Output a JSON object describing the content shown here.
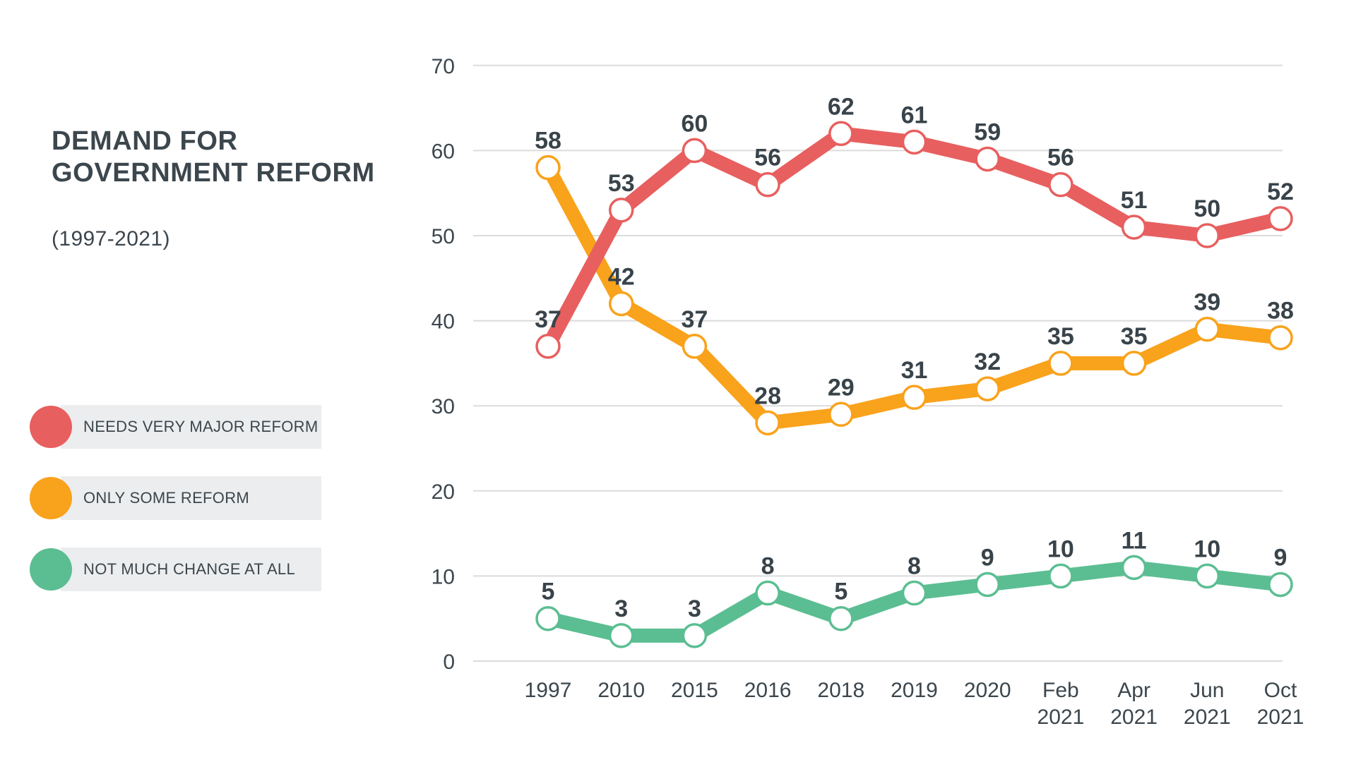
{
  "title": "DEMAND FOR GOVERNMENT REFORM",
  "subtitle": "(1997-2021)",
  "colors": {
    "text": "#3C464D",
    "grid": "#DBDBDB",
    "legend_chip_bg": "#ECEDEE",
    "background": "#FFFFFF",
    "series_red": "#E85F5F",
    "series_orange": "#F9A21B",
    "series_green": "#5BBE92"
  },
  "chart_data": {
    "type": "line",
    "title": "DEMAND FOR GOVERNMENT REFORM",
    "subtitle": "(1997-2021)",
    "categories": [
      "1997",
      "2010",
      "2015",
      "2016",
      "2018",
      "2019",
      "2020",
      "Feb\n2021",
      "Apr\n2021",
      "Jun\n2021",
      "Oct\n2021"
    ],
    "series": [
      {
        "name": "NEEDS VERY MAJOR REFORM",
        "color": "#E85F5F",
        "values": [
          37,
          53,
          60,
          56,
          62,
          61,
          59,
          56,
          51,
          50,
          52
        ]
      },
      {
        "name": "ONLY SOME REFORM",
        "color": "#F9A21B",
        "values": [
          58,
          42,
          37,
          28,
          29,
          31,
          32,
          35,
          35,
          39,
          38
        ]
      },
      {
        "name": "NOT MUCH CHANGE AT ALL",
        "color": "#5BBE92",
        "values": [
          5,
          3,
          3,
          8,
          5,
          8,
          9,
          10,
          11,
          10,
          9
        ]
      }
    ],
    "ylim": [
      0,
      70
    ],
    "yticks": [
      0,
      10,
      20,
      30,
      40,
      50,
      60,
      70
    ],
    "grid": "horizontal",
    "legend_position": "left",
    "point_labels": true,
    "xlabel": "",
    "ylabel": ""
  }
}
